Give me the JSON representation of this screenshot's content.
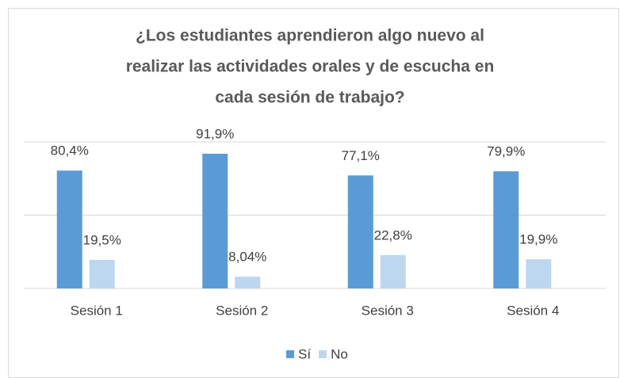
{
  "chart_data": {
    "type": "bar",
    "title": [
      "¿Los estudiantes aprendieron algo nuevo al",
      "realizar las actividades orales y de escucha en",
      "cada sesión de trabajo?"
    ],
    "categories": [
      "Sesión 1",
      "Sesión 2",
      "Sesión 3",
      "Sesión 4"
    ],
    "series": [
      {
        "name": "Sí",
        "color": "#5b9bd5",
        "values": [
          80.4,
          91.9,
          77.1,
          79.9
        ],
        "value_labels": [
          "80,4%",
          "91,9%",
          "77,1%",
          "79,9%"
        ]
      },
      {
        "name": "No",
        "color": "#bdd7ee",
        "values": [
          19.5,
          8.04,
          22.8,
          19.9
        ],
        "value_labels": [
          "19,5%",
          "8,04%",
          "22,8%",
          "19,9%"
        ]
      }
    ],
    "ylim": [
      0,
      100
    ],
    "yticks": [
      0,
      50,
      100
    ],
    "grid": true,
    "legend": "bottom"
  }
}
